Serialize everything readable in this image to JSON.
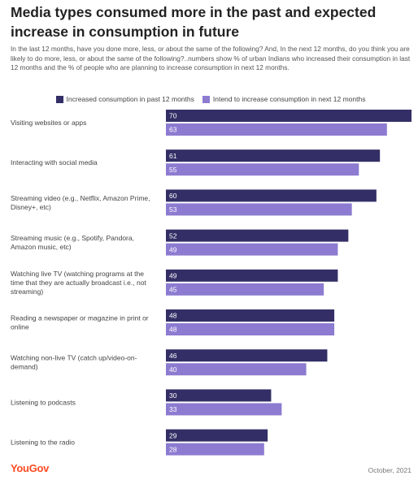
{
  "header": {
    "title": "Media types consumed more in the past and expected increase in consumption in future",
    "subtitle": "In the last 12 months, have you done more, less, or about the same of the following? And, In the next 12 months, do you think you are likely to do more, less, or about the same of the following?..numbers show % of urban Indians who increased their consumption in last 12 months and the % of people who are planning to increase consumption in next 12 months."
  },
  "footer": {
    "brand": "YouGov",
    "date": "October, 2021"
  },
  "colors": {
    "past": "#332f66",
    "future": "#8c7bd1",
    "value_text": "#ffffff"
  },
  "chart_data": {
    "type": "bar",
    "orientation": "horizontal",
    "categories": [
      [
        "Visiting websites or apps"
      ],
      [
        "Interacting with social media"
      ],
      [
        "Streaming video (e.g., Netflix, Amazon Prime,",
        "Disney+, etc)"
      ],
      [
        "Streaming music (e.g., Spotify, Pandora,",
        "Amazon music, etc)"
      ],
      [
        "Watching live TV (watching programs at the",
        "time that they are actually broadcast i.e., not",
        "streaming)"
      ],
      [
        "Reading a newspaper or magazine in print or",
        "online"
      ],
      [
        "Watching non-live TV (catch up/video-on-",
        "demand)"
      ],
      [
        "Listening to podcasts"
      ],
      [
        "Listening to the radio"
      ]
    ],
    "series": [
      {
        "name": "Increased consumption in past 12 months",
        "values": [
          70,
          61,
          60,
          52,
          49,
          48,
          46,
          30,
          29
        ]
      },
      {
        "name": "Intend to increase consumption in next 12 months",
        "values": [
          63,
          55,
          53,
          49,
          45,
          48,
          40,
          33,
          28
        ]
      }
    ],
    "xlim": [
      0,
      70
    ],
    "legend": "top",
    "grid": false
  }
}
